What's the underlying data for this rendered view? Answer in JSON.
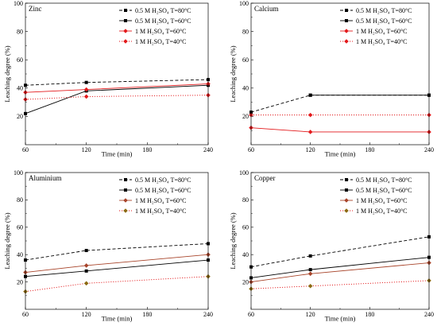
{
  "chart_data": [
    {
      "type": "line",
      "title": "Zinc",
      "xlabel": "Time (min)",
      "ylabel": "Leaching degree (%)",
      "xlim": [
        60,
        240
      ],
      "ylim": [
        0,
        100
      ],
      "xticks": [
        60,
        120,
        180,
        240
      ],
      "yticks": [
        20,
        40,
        60,
        80,
        100
      ],
      "grid": false,
      "legend": "top-right",
      "series": [
        {
          "name": "0.5 M H₂SO₄ T=80°C",
          "x": [
            60,
            120,
            240
          ],
          "values": [
            42,
            44,
            46
          ],
          "color": "#000000",
          "marker_color": "#000000",
          "line_style": "dashed",
          "marker": "square"
        },
        {
          "name": "0.5 M H₂SO₄ T=60°C",
          "x": [
            60,
            120,
            240
          ],
          "values": [
            22,
            38,
            42
          ],
          "color": "#000000",
          "marker_color": "#000000",
          "line_style": "solid",
          "marker": "square"
        },
        {
          "name": "1 M H₂SO₄ T=60°C",
          "x": [
            60,
            120,
            240
          ],
          "values": [
            37,
            39,
            43
          ],
          "color": "#e31a1c",
          "marker_color": "#e31a1c",
          "line_style": "solid",
          "marker": "diamond"
        },
        {
          "name": "1 M H₂SO₄ T=40°C",
          "x": [
            60,
            120,
            240
          ],
          "values": [
            32,
            34,
            35
          ],
          "color": "#e31a1c",
          "marker_color": "#e31a1c",
          "line_style": "dotted",
          "marker": "diamond"
        }
      ]
    },
    {
      "type": "line",
      "title": "Calcium",
      "xlabel": "Time (min)",
      "ylabel": "Leaching degree (%)",
      "xlim": [
        60,
        240
      ],
      "ylim": [
        0,
        100
      ],
      "xticks": [
        60,
        120,
        180,
        240
      ],
      "yticks": [
        20,
        40,
        60,
        80,
        100
      ],
      "grid": false,
      "legend": "top-right",
      "series": [
        {
          "name": "0.5 M H₂SO₄ T=80°C",
          "x": [
            60,
            120,
            240
          ],
          "values": [
            23,
            35,
            35
          ],
          "color": "#000000",
          "marker_color": "#000000",
          "line_style": "dashed",
          "marker": "square"
        },
        {
          "name": "0.5 M H₂SO₄ T=60°C",
          "x": [
            120,
            240
          ],
          "values": [
            35,
            35
          ],
          "color": "#000000",
          "marker_color": "#000000",
          "line_style": "solid",
          "marker": "square"
        },
        {
          "name": "1 M H₂SO₄ T=60°C",
          "x": [
            60,
            120,
            240
          ],
          "values": [
            12,
            9,
            9
          ],
          "color": "#e31a1c",
          "marker_color": "#e31a1c",
          "line_style": "solid",
          "marker": "diamond"
        },
        {
          "name": "1 M H₂SO₄ T=40°C",
          "x": [
            60,
            120,
            240
          ],
          "values": [
            21,
            21,
            21
          ],
          "color": "#e31a1c",
          "marker_color": "#e31a1c",
          "line_style": "dotted",
          "marker": "diamond"
        }
      ]
    },
    {
      "type": "line",
      "title": "Aluminium",
      "xlabel": "Time (min)",
      "ylabel": "Leaching degree (%)",
      "xlim": [
        60,
        240
      ],
      "ylim": [
        0,
        100
      ],
      "xticks": [
        60,
        120,
        180,
        240
      ],
      "yticks": [
        20,
        40,
        60,
        80,
        100
      ],
      "grid": false,
      "legend": "top-right",
      "series": [
        {
          "name": "0.5 M H₂SO₄ T=80°C",
          "x": [
            60,
            120,
            240
          ],
          "values": [
            36,
            43,
            48
          ],
          "color": "#000000",
          "marker_color": "#000000",
          "line_style": "dashed",
          "marker": "square"
        },
        {
          "name": "0.5 M H₂SO₄ T=60°C",
          "x": [
            60,
            120,
            240
          ],
          "values": [
            24,
            28,
            36
          ],
          "color": "#000000",
          "marker_color": "#000000",
          "line_style": "solid",
          "marker": "square"
        },
        {
          "name": "1 M H₂SO₄ T=60°C",
          "x": [
            60,
            120,
            240
          ],
          "values": [
            27,
            32,
            40
          ],
          "color": "#a8442a",
          "marker_color": "#a8442a",
          "line_style": "solid",
          "marker": "diamond"
        },
        {
          "name": "1 M H₂SO₄ T=40°C",
          "x": [
            60,
            120,
            240
          ],
          "values": [
            13,
            19,
            24
          ],
          "color": "#e31a1c",
          "marker_color": "#8c6a12",
          "line_style": "dotted",
          "marker": "diamond"
        }
      ]
    },
    {
      "type": "line",
      "title": "Copper",
      "xlabel": "Time (min)",
      "ylabel": "Leaching degree (%)",
      "xlim": [
        60,
        240
      ],
      "ylim": [
        0,
        100
      ],
      "xticks": [
        60,
        120,
        180,
        240
      ],
      "yticks": [
        20,
        40,
        60,
        80,
        100
      ],
      "grid": false,
      "legend": "top-right",
      "series": [
        {
          "name": "0.5 M H₂SO₄ T=80°C",
          "x": [
            60,
            120,
            240
          ],
          "values": [
            31,
            39,
            53
          ],
          "color": "#000000",
          "marker_color": "#000000",
          "line_style": "dashed",
          "marker": "square"
        },
        {
          "name": "0.5 M H₂SO₄ T=60°C",
          "x": [
            60,
            120,
            240
          ],
          "values": [
            23,
            29,
            38
          ],
          "color": "#000000",
          "marker_color": "#000000",
          "line_style": "solid",
          "marker": "square"
        },
        {
          "name": "1 M H₂SO₄ T=60°C",
          "x": [
            60,
            120,
            240
          ],
          "values": [
            20,
            26,
            34
          ],
          "color": "#a8442a",
          "marker_color": "#a8442a",
          "line_style": "solid",
          "marker": "diamond"
        },
        {
          "name": "1 M H₂SO₄ T=40°C",
          "x": [
            60,
            120,
            240
          ],
          "values": [
            15,
            17,
            21
          ],
          "color": "#e31a1c",
          "marker_color": "#8c6a12",
          "line_style": "dotted",
          "marker": "diamond"
        }
      ]
    }
  ]
}
